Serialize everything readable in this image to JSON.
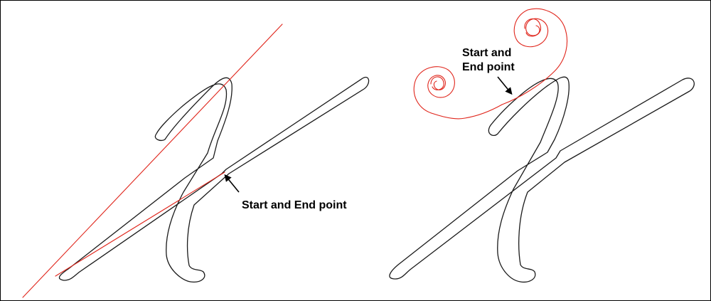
{
  "colors": {
    "outline": "#1a1a1a",
    "lead_in_path": "#e0251b",
    "arrow": "#000000"
  },
  "panels": [
    {
      "name": "straight-lead-in",
      "label": "Start and End point"
    },
    {
      "name": "spiral-lead-in",
      "label_line1": "Start and",
      "label_line2": "End point"
    }
  ]
}
